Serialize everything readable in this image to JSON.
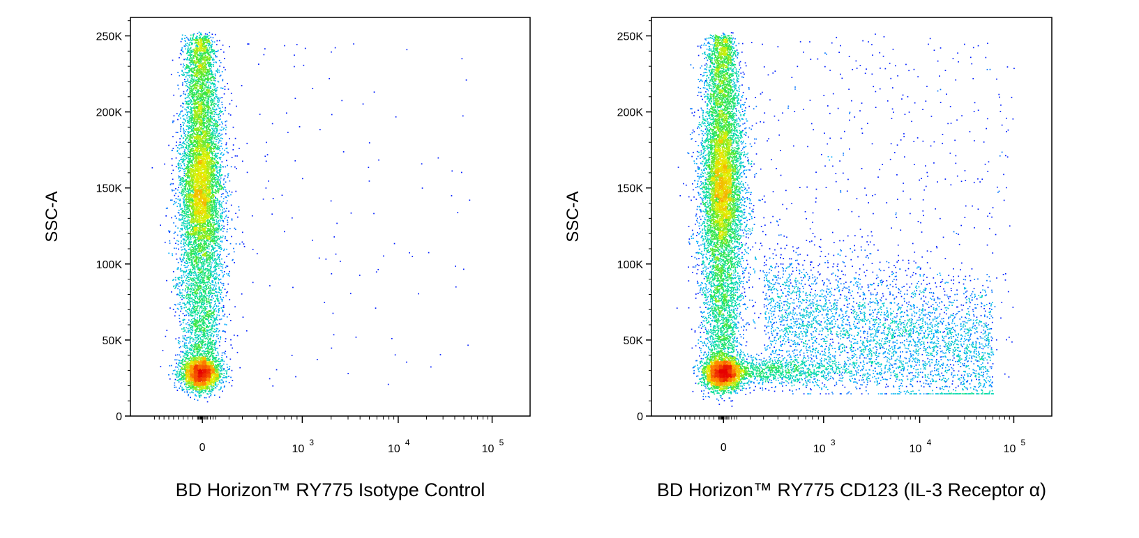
{
  "chart_data": [
    {
      "type": "scatter",
      "subtype": "flow-cytometry pseudocolor density",
      "xlabel": "BD Horizon™ RY775 Isotype Control",
      "ylabel": "SSC-A",
      "x_scale": "biexponential",
      "x_ticks": [
        {
          "value": 0,
          "label": "0"
        },
        {
          "value": 1000,
          "base": "10",
          "exp": "3"
        },
        {
          "value": 10000,
          "base": "10",
          "exp": "4"
        },
        {
          "value": 100000,
          "base": "10",
          "exp": "5"
        }
      ],
      "y_ticks": [
        {
          "value": 0,
          "label": "0"
        },
        {
          "value": 50000,
          "label": "50K"
        },
        {
          "value": 100000,
          "label": "100K"
        },
        {
          "value": 150000,
          "label": "150K"
        },
        {
          "value": 200000,
          "label": "200K"
        },
        {
          "value": 250000,
          "label": "250K"
        }
      ],
      "ylim": [
        0,
        262144
      ],
      "populations": [
        {
          "description": "dense core",
          "x_center": -40,
          "y_center": 28000,
          "n": 2600
        },
        {
          "description": "elongated vertical column",
          "x_center": -40,
          "y_range": [
            30000,
            250000
          ],
          "n": 7000
        }
      ],
      "sparse_events_x_range": [
        100,
        60000
      ],
      "color_scale": [
        "#00008b",
        "#0000ff",
        "#00bfff",
        "#00ff7f",
        "#ffff00",
        "#ff8c00",
        "#ff0000"
      ],
      "grid": false
    },
    {
      "type": "scatter",
      "subtype": "flow-cytometry pseudocolor density",
      "xlabel": "BD Horizon™ RY775  CD123 (IL-3 Receptor α)",
      "ylabel": "SSC-A",
      "x_scale": "biexponential",
      "x_ticks": [
        {
          "value": 0,
          "label": "0"
        },
        {
          "value": 1000,
          "base": "10",
          "exp": "3"
        },
        {
          "value": 10000,
          "base": "10",
          "exp": "4"
        },
        {
          "value": 100000,
          "base": "10",
          "exp": "5"
        }
      ],
      "y_ticks": [
        {
          "value": 0,
          "label": "0"
        },
        {
          "value": 50000,
          "label": "50K"
        },
        {
          "value": 100000,
          "label": "100K"
        },
        {
          "value": 150000,
          "label": "150K"
        },
        {
          "value": 200000,
          "label": "200K"
        },
        {
          "value": 250000,
          "label": "250K"
        }
      ],
      "ylim": [
        0,
        262144
      ],
      "populations": [
        {
          "description": "dense core",
          "x_center": -40,
          "y_center": 28000,
          "n": 2600
        },
        {
          "description": "elongated vertical column",
          "x_center": -40,
          "y_range": [
            30000,
            250000
          ],
          "n": 7000
        },
        {
          "description": "CD123+ positive smear",
          "x_range": [
            300,
            60000
          ],
          "y_range": [
            30000,
            150000
          ],
          "n": 3500
        }
      ],
      "sparse_events_x_range": [
        100,
        100000
      ],
      "color_scale": [
        "#00008b",
        "#0000ff",
        "#00bfff",
        "#00ff7f",
        "#ffff00",
        "#ff8c00",
        "#ff0000"
      ],
      "grid": false
    }
  ]
}
